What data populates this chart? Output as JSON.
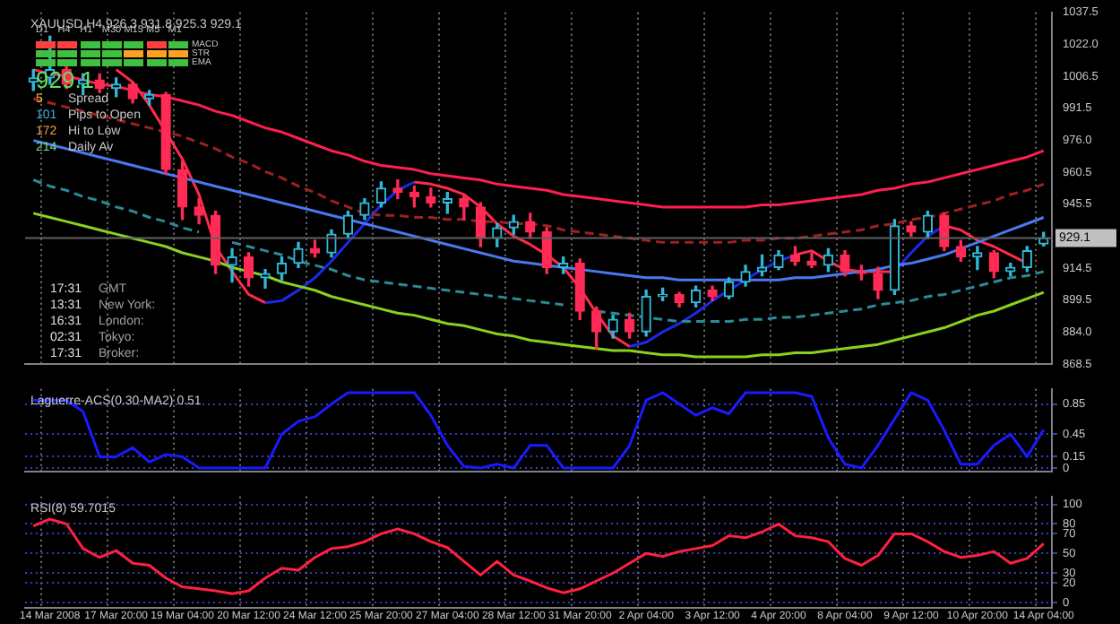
{
  "chart_data": [
    {
      "type": "candlestick",
      "title": "XAUUSD,H4 926.3 931.8 925.3 929.1",
      "categories": [
        null,
        null,
        null,
        null,
        null,
        null,
        null,
        null,
        null,
        null,
        null,
        null,
        null,
        null,
        null,
        null,
        null,
        null,
        null,
        null,
        null,
        null,
        null,
        null,
        null,
        null,
        null,
        null,
        null,
        null,
        null,
        null,
        null,
        null,
        null,
        null,
        null,
        null,
        null,
        null,
        null,
        null,
        null,
        null,
        null,
        null,
        null,
        null,
        null,
        null,
        null,
        null,
        null,
        null,
        null,
        null,
        null,
        null,
        null,
        null,
        null,
        null
      ],
      "ohlc": [
        [
          1004,
          1010,
          1000,
          1006
        ],
        [
          1006,
          1026,
          1003,
          1010
        ],
        [
          1010,
          1012,
          1001,
          1003
        ],
        [
          1003,
          1008,
          998,
          1005
        ],
        [
          1005,
          1008,
          999,
          1001
        ],
        [
          1001,
          1006,
          997,
          1003
        ],
        [
          1003,
          1004,
          994,
          996
        ],
        [
          996,
          1000,
          993,
          998
        ],
        [
          998,
          999,
          960,
          962
        ],
        [
          962,
          966,
          938,
          944
        ],
        [
          944,
          948,
          936,
          940
        ],
        [
          940,
          942,
          912,
          916
        ],
        [
          916,
          924,
          908,
          920
        ],
        [
          920,
          922,
          906,
          910
        ],
        [
          910,
          914,
          905,
          912
        ],
        [
          912,
          920,
          909,
          917
        ],
        [
          917,
          927,
          915,
          924
        ],
        [
          924,
          928,
          920,
          922
        ],
        [
          922,
          933,
          920,
          931
        ],
        [
          931,
          942,
          929,
          940
        ],
        [
          940,
          948,
          938,
          946
        ],
        [
          946,
          956,
          944,
          953
        ],
        [
          953,
          957,
          948,
          951
        ],
        [
          951,
          954,
          944,
          949
        ],
        [
          949,
          953,
          944,
          946
        ],
        [
          946,
          951,
          941,
          948
        ],
        [
          948,
          950,
          938,
          944
        ],
        [
          944,
          946,
          925,
          929
        ],
        [
          929,
          936,
          925,
          934
        ],
        [
          934,
          940,
          931,
          937
        ],
        [
          937,
          941,
          929,
          932
        ],
        [
          932,
          934,
          912,
          915
        ],
        [
          915,
          920,
          912,
          917
        ],
        [
          917,
          919,
          890,
          894
        ],
        [
          894,
          896,
          876,
          884
        ],
        [
          884,
          892,
          881,
          890
        ],
        [
          890,
          893,
          881,
          884
        ],
        [
          884,
          904,
          882,
          901
        ],
        [
          901,
          905,
          899,
          902
        ],
        [
          902,
          903,
          896,
          898
        ],
        [
          898,
          906,
          896,
          904
        ],
        [
          904,
          906,
          899,
          901
        ],
        [
          901,
          910,
          900,
          908
        ],
        [
          908,
          916,
          906,
          913
        ],
        [
          913,
          921,
          911,
          915
        ],
        [
          915,
          923,
          914,
          921
        ],
        [
          921,
          925,
          916,
          918
        ],
        [
          918,
          922,
          915,
          916
        ],
        [
          916,
          924,
          913,
          921
        ],
        [
          921,
          923,
          911,
          913
        ],
        [
          913,
          916,
          909,
          912
        ],
        [
          912,
          915,
          900,
          904
        ],
        [
          904,
          938,
          902,
          935
        ],
        [
          935,
          937,
          930,
          932
        ],
        [
          932,
          942,
          929,
          940
        ],
        [
          940,
          941,
          923,
          925
        ],
        [
          925,
          928,
          918,
          920
        ],
        [
          920,
          925,
          914,
          922
        ],
        [
          922,
          923,
          910,
          913
        ],
        [
          913,
          917,
          911,
          915
        ],
        [
          915,
          925,
          913,
          923
        ],
        [
          926.3,
          931.8,
          925.3,
          929.1
        ]
      ],
      "series": [
        {
          "type": "line",
          "color": "#ff1f4f",
          "values": [
            1010,
            1008,
            1007,
            1005,
            1003,
            1002,
            1000,
            998,
            997,
            995,
            993,
            990,
            988,
            985,
            982,
            980,
            977,
            974,
            971,
            969,
            966,
            964,
            963,
            962,
            960,
            959,
            958,
            957,
            955,
            954,
            953,
            952,
            950,
            949,
            948,
            947,
            946,
            945,
            944,
            944,
            944,
            944,
            944,
            944,
            945,
            945,
            946,
            947,
            948,
            949,
            950,
            952,
            953,
            955,
            956,
            958,
            960,
            962,
            964,
            966,
            968,
            971
          ]
        },
        {
          "type": "line",
          "color": "#a02020",
          "line_style": "dashed",
          "values": [
            996,
            994,
            992,
            990,
            988,
            986,
            984,
            982,
            980,
            978,
            975,
            972,
            968,
            965,
            961,
            958,
            954,
            951,
            947,
            944,
            941,
            940,
            940,
            939,
            939,
            938,
            938,
            937,
            937,
            936,
            936,
            935,
            933,
            932,
            931,
            930,
            929,
            928,
            927,
            927,
            927,
            927,
            927,
            928,
            928,
            929,
            929,
            930,
            931,
            932,
            933,
            935,
            936,
            938,
            939,
            941,
            943,
            945,
            947,
            950,
            952,
            955
          ]
        },
        {
          "type": "line",
          "color": "#4a78f0",
          "values": [
            976,
            974,
            972,
            970,
            968,
            966,
            964,
            962,
            960,
            958,
            956,
            954,
            952,
            950,
            948,
            946,
            944,
            942,
            940,
            938,
            936,
            934,
            932,
            930,
            928,
            926,
            924,
            922,
            920,
            918,
            917,
            916,
            915,
            914,
            913,
            912,
            911,
            910,
            910,
            909,
            909,
            909,
            909,
            909,
            909,
            909,
            910,
            910,
            911,
            912,
            913,
            914,
            916,
            917,
            919,
            921,
            924,
            927,
            930,
            933,
            936,
            939
          ]
        },
        {
          "type": "line",
          "color": "#2a8a9a",
          "line_style": "dashed",
          "values": [
            957,
            954,
            952,
            949,
            947,
            944,
            942,
            939,
            937,
            934,
            932,
            null,
            927,
            925,
            923,
            921,
            918,
            916,
            914,
            911,
            909,
            908,
            907,
            906,
            905,
            904,
            903,
            902,
            901,
            900,
            899,
            898,
            897,
            null,
            894,
            893,
            892,
            891,
            890,
            889,
            889,
            889,
            889,
            890,
            890,
            891,
            891,
            892,
            893,
            894,
            895,
            897,
            898,
            899,
            901,
            902,
            904,
            906,
            908,
            910,
            911,
            913
          ]
        },
        {
          "type": "line",
          "color": "#8ad020",
          "values": [
            941,
            939,
            937,
            935,
            933,
            931,
            929,
            927,
            925,
            922,
            920,
            918,
            915,
            913,
            911,
            908,
            906,
            904,
            901,
            899,
            897,
            895,
            893,
            892,
            890,
            888,
            887,
            885,
            883,
            882,
            880,
            879,
            878,
            877,
            876,
            875,
            875,
            874,
            873,
            873,
            872,
            872,
            872,
            872,
            873,
            873,
            874,
            874,
            875,
            876,
            877,
            878,
            880,
            882,
            884,
            886,
            889,
            892,
            894,
            897,
            900,
            903
          ]
        },
        {
          "type": "line",
          "color": "#ff2a4a",
          "values": [
            null,
            null,
            null,
            null,
            null,
            1010,
            1004,
            993,
            980,
            967,
            950,
            925,
            913,
            902,
            898,
            null,
            null,
            null,
            null,
            null,
            null,
            null,
            null,
            956,
            955,
            953,
            950,
            944,
            936,
            930,
            926,
            921,
            915,
            905,
            893,
            882,
            877,
            null,
            null,
            null,
            null,
            null,
            null,
            null,
            null,
            null,
            921,
            923,
            918,
            914,
            913,
            913,
            913,
            null,
            null,
            935,
            933,
            928,
            925,
            921,
            917,
            null
          ]
        },
        {
          "type": "line",
          "color": "#1a2ae8",
          "values": [
            null,
            null,
            null,
            null,
            null,
            null,
            null,
            null,
            null,
            null,
            null,
            null,
            null,
            null,
            898,
            899,
            904,
            910,
            918,
            927,
            936,
            945,
            952,
            956,
            null,
            null,
            null,
            null,
            null,
            null,
            null,
            null,
            null,
            null,
            null,
            null,
            877,
            879,
            884,
            888,
            893,
            899,
            904,
            909,
            914,
            918,
            921,
            null,
            null,
            null,
            null,
            null,
            913,
            922,
            930,
            935,
            null,
            null,
            null,
            null,
            null,
            null
          ]
        }
      ],
      "ylim": [
        868.5,
        1037.5
      ],
      "yticks": [
        868.5,
        {
          "value": 884,
          "label": "884.0"
        },
        899.5,
        914.5,
        945.5,
        960.5,
        {
          "value": 976,
          "label": "976.0"
        },
        991.5,
        1006.5,
        {
          "value": 1022,
          "label": "1022.0"
        },
        1037.5
      ],
      "ref_lines": [
        {
          "axis": "y",
          "value": 929.1,
          "label": "929.1",
          "color": "#606060"
        }
      ],
      "grid": "x",
      "tick_labels": "y",
      "annotations": [
        "D1",
        "H4",
        "H1",
        "M30",
        "M15",
        "M5",
        "M1",
        "MACD",
        "STR",
        "EMA",
        "929.1",
        "5",
        "Spread",
        "101",
        "Pips to Open",
        "172",
        "Hi to Low",
        "214",
        "Daily Av",
        "17:31",
        "GMT",
        "13:31",
        "New York:",
        "16:31",
        "London:",
        "02:31",
        "Tokyo:",
        "17:31",
        "Broker:"
      ]
    },
    {
      "type": "line",
      "title": "Laguerre-ACS(0.30-MA2) 0.51",
      "categories": [
        null,
        null,
        null,
        null,
        null,
        null,
        null,
        null,
        null,
        null,
        null,
        null,
        null,
        null,
        null,
        null,
        null,
        null,
        null,
        null,
        null,
        null,
        null,
        null,
        null,
        null,
        null,
        null,
        null,
        null,
        null,
        null,
        null,
        null,
        null,
        null,
        null,
        null,
        null,
        null,
        null,
        null,
        null,
        null,
        null,
        null,
        null,
        null,
        null,
        null,
        null,
        null,
        null,
        null,
        null,
        null,
        null,
        null,
        null,
        null,
        null,
        null
      ],
      "series": [
        {
          "color": "#1a1aff",
          "values": [
            0.9,
            0.9,
            0.9,
            0.75,
            0.15,
            0.15,
            0.27,
            0.08,
            0.18,
            0.15,
            0,
            0,
            0,
            0,
            0,
            0.45,
            0.62,
            0.68,
            0.85,
            1,
            1,
            1,
            1,
            1,
            0.7,
            0.3,
            0.02,
            0,
            0.05,
            0,
            0.3,
            0.3,
            0,
            0,
            0,
            0,
            0.3,
            0.9,
            1,
            0.85,
            0.7,
            0.8,
            0.72,
            1,
            1,
            1,
            1,
            0.95,
            0.4,
            0.05,
            0,
            0.3,
            0.65,
            1,
            0.9,
            0.5,
            0.05,
            0.05,
            0.3,
            0.45,
            0.15,
            0.51
          ]
        }
      ],
      "ylim": [
        -0.05,
        1.05
      ],
      "yticks": [
        0,
        0.15,
        0.45,
        0.85
      ],
      "grid": true,
      "tick_labels": "y"
    },
    {
      "type": "line",
      "title": "RSI(8) 59.7015",
      "categories": [
        null,
        "14 Mar 2008",
        null,
        null,
        null,
        "17 Mar 20:00",
        null,
        null,
        null,
        "19 Mar 04:00",
        null,
        null,
        null,
        "20 Mar 12:00",
        null,
        null,
        null,
        "24 Mar 12:00",
        null,
        null,
        null,
        "25 Mar 20:00",
        null,
        null,
        null,
        "27 Mar 04:00",
        null,
        null,
        null,
        "28 Mar 12:00",
        null,
        null,
        null,
        "31 Mar 20:00",
        null,
        null,
        null,
        "2 Apr 04:00",
        null,
        null,
        null,
        "3 Apr 12:00",
        null,
        null,
        null,
        "4 Apr 20:00",
        null,
        null,
        null,
        "8 Apr 04:00",
        null,
        null,
        null,
        "9 Apr 12:00",
        null,
        null,
        null,
        "10 Apr 20:00",
        null,
        null,
        null,
        "14 Apr 04:00"
      ],
      "series": [
        {
          "color": "#ff2040",
          "values": [
            78,
            85,
            80,
            55,
            46,
            53,
            40,
            38,
            25,
            16,
            14,
            12,
            9,
            12,
            25,
            35,
            33,
            46,
            55,
            57,
            62,
            70,
            75,
            70,
            62,
            56,
            42,
            28,
            42,
            28,
            22,
            15,
            10,
            14,
            22,
            30,
            40,
            50,
            47,
            52,
            55,
            58,
            68,
            66,
            72,
            80,
            68,
            66,
            62,
            45,
            38,
            48,
            70,
            70,
            62,
            52,
            46,
            48,
            52,
            40,
            45,
            60
          ]
        }
      ],
      "ylim": [
        -5,
        108
      ],
      "yticks": [
        0,
        20,
        30,
        50,
        70,
        80,
        100
      ],
      "grid": true
    }
  ]
}
